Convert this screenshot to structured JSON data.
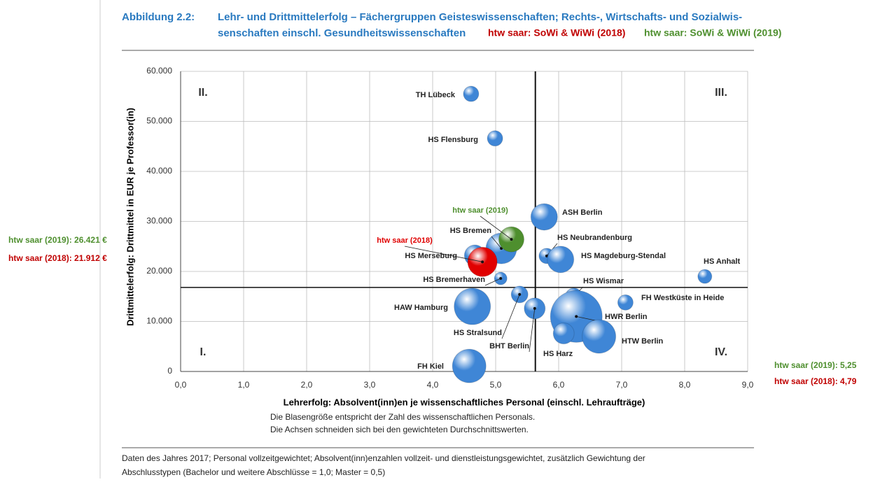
{
  "header": {
    "figure": "Abbildung 2.2:",
    "title_line1": "Lehr- und Drittmittelerfolg – Fächergruppen Geisteswissenschaften; Rechts-, Wirtschafts- und Sozialwis-",
    "title_line2": "senschaften einschl. Gesundheitswissenschaften",
    "tag_2018": {
      "text": "htw saar: SoWi & WiWi (2018)",
      "color": "#c00000"
    },
    "tag_2019": {
      "text": "htw saar: SoWi & WiWi (2019)",
      "color": "#4e8f2e"
    }
  },
  "annotations": [
    {
      "text": "htw saar (2019): 26.421 €",
      "color": "#4e8f2e"
    },
    {
      "text": "htw saar (2018): 21.912 €",
      "color": "#c00000"
    },
    {
      "text": "htw saar (2019): 5,25",
      "color": "#4e8f2e"
    },
    {
      "text": "htw saar (2018): 4,79",
      "color": "#c00000"
    }
  ],
  "chart_data": {
    "type": "bubble",
    "x_label": "Lehrerfolg: Absolvent(inn)en je wissenschaftliches Personal (einschl. Lehraufträge)",
    "y_label": "Drittmittelerfolg: Drittmittel in EUR je Professor(in)",
    "xlim": [
      0,
      9
    ],
    "ylim": [
      0,
      60000
    ],
    "xticks": [
      {
        "value": 0,
        "label": "0,0"
      },
      {
        "value": 1,
        "label": "1,0"
      },
      {
        "value": 2,
        "label": "2,0"
      },
      {
        "value": 3,
        "label": "3,0"
      },
      {
        "value": 4,
        "label": "4,0"
      },
      {
        "value": 5,
        "label": "5,0"
      },
      {
        "value": 6,
        "label": "6,0"
      },
      {
        "value": 7,
        "label": "7,0"
      },
      {
        "value": 8,
        "label": "8,0"
      },
      {
        "value": 9,
        "label": "9,0"
      }
    ],
    "yticks": [
      {
        "value": 0,
        "label": "0"
      },
      {
        "value": 10000,
        "label": "10.000"
      },
      {
        "value": 20000,
        "label": "20.000"
      },
      {
        "value": 30000,
        "label": "30.000"
      },
      {
        "value": 40000,
        "label": "40.000"
      },
      {
        "value": 50000,
        "label": "50.000"
      },
      {
        "value": 60000,
        "label": "60.000"
      }
    ],
    "grid": true,
    "x_cross": 5.63,
    "y_cross": 16800,
    "quadrants": [
      "I.",
      "II.",
      "III.",
      "IV."
    ],
    "color": "#3f86d6",
    "labels": [
      "TH Lübeck",
      "HS Flensburg",
      "ASH Berlin",
      "HS Bremen",
      "HS Merseburg",
      "HS Neubrandenburg",
      "HS Magdeburg-Stendal",
      "HS Anhalt",
      "HS Bremerhaven",
      "HS Wismar",
      "FH Westküste in Heide",
      "HAW Hamburg",
      "HS Stralsund",
      "BHT Berlin",
      "HWR Berlin",
      "HS Harz",
      "HTW Berlin",
      "FH Kiel",
      "htw saar (2018)",
      "htw saar (2019)"
    ],
    "x": [
      4.61,
      4.99,
      5.77,
      5.09,
      4.67,
      5.81,
      6.03,
      8.32,
      5.08,
      6.24,
      7.06,
      4.63,
      5.38,
      5.62,
      6.28,
      6.08,
      6.64,
      4.58,
      4.79,
      5.25
    ],
    "y": [
      55500,
      46600,
      30900,
      24600,
      23200,
      23100,
      22400,
      19000,
      18600,
      15000,
      13800,
      13000,
      15400,
      12600,
      11000,
      7600,
      7000,
      1100,
      21912,
      26421
    ],
    "sizes": [
      121,
      121,
      361,
      484,
      225,
      121,
      361,
      100,
      81,
      144,
      121,
      676,
      144,
      225,
      1369,
      225,
      576,
      576,
      441,
      324
    ],
    "colors": [
      "#3f86d6",
      "#3f86d6",
      "#3f86d6",
      "#3f86d6",
      "#3f86d6",
      "#3f86d6",
      "#3f86d6",
      "#3f86d6",
      "#3f86d6",
      "#3f86d6",
      "#3f86d6",
      "#3f86d6",
      "#3f86d6",
      "#3f86d6",
      "#3f86d6",
      "#3f86d6",
      "#3f86d6",
      "#3f86d6",
      "#e00000",
      "#4e8f2e"
    ],
    "notes": [
      "Die Blasengröße entspricht der Zahl des wissenschaftlichen Personals.",
      "Die Achsen schneiden sich bei den gewichteten Durchschnittswerten."
    ]
  },
  "footer": [
    "Daten des Jahres 2017; Personal vollzeitgewichtet; Absolvent(inn)enzahlen vollzeit- und dienstleistungsgewichtet, zusätzlich Gewichtung der",
    "Abschlusstypen (Bachelor und weitere Abschlüsse = 1,0; Master = 0,5)"
  ]
}
